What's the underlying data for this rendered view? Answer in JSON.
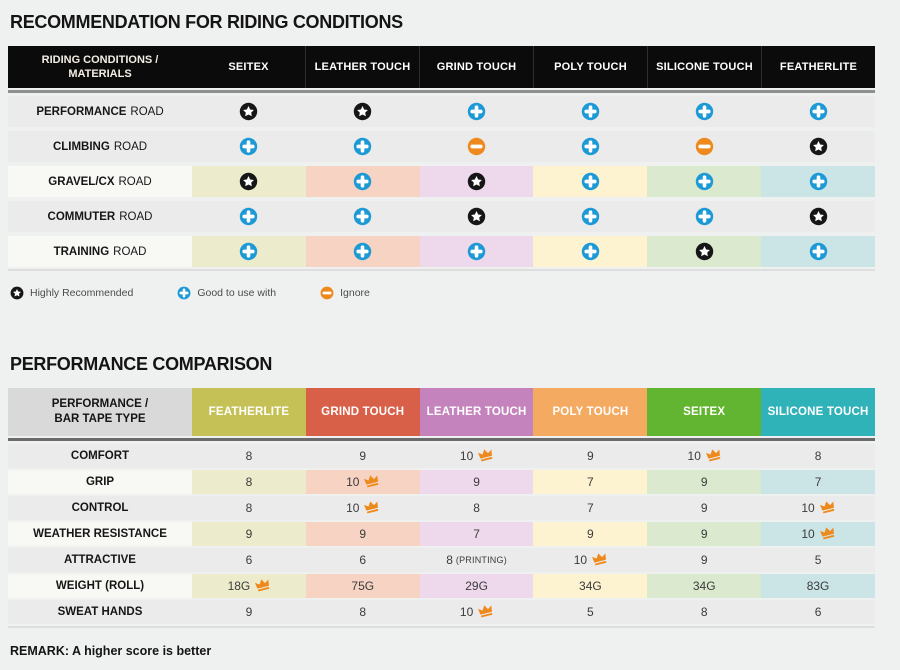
{
  "palette": {
    "page_bg": "#eff0f0",
    "header1_bg": "#0b0b0b",
    "row_gray": "#ebebeb",
    "tint_label_bg": "#f8f8f5",
    "column_tints": [
      "#ececcc",
      "#f6d3c3",
      "#eed8eb",
      "#fdf3d1",
      "#dbe9ce",
      "#cbe5e7"
    ],
    "corner2_bg": "#d9d9d9",
    "icon_blue": "#1d9ad6",
    "icon_orange": "#ee8a1d",
    "icon_black": "#161616",
    "crown_orange": "#ee8a1d"
  },
  "riding": {
    "title": "RECOMMENDATION FOR RIDING CONDITIONS",
    "corner_header": "RIDING CONDITIONS / MATERIALS",
    "columns": [
      "SEITEX",
      "LEATHER TOUCH",
      "GRIND TOUCH",
      "POLY TOUCH",
      "SILICONE TOUCH",
      "FEATHERLITE"
    ],
    "rows": [
      {
        "label_bold": "PERFORMANCE",
        "label_rest": "ROAD",
        "tinted": false,
        "cells": [
          "star",
          "star",
          "plus",
          "plus",
          "plus",
          "plus"
        ]
      },
      {
        "label_bold": "CLIMBING",
        "label_rest": "ROAD",
        "tinted": false,
        "cells": [
          "plus",
          "plus",
          "minus",
          "plus",
          "minus",
          "star"
        ]
      },
      {
        "label_bold": "GRAVEL/CX",
        "label_rest": "ROAD",
        "tinted": true,
        "cells": [
          "star",
          "plus",
          "star",
          "plus",
          "plus",
          "plus"
        ]
      },
      {
        "label_bold": "COMMUTER",
        "label_rest": "ROAD",
        "tinted": false,
        "cells": [
          "plus",
          "plus",
          "star",
          "plus",
          "plus",
          "star"
        ]
      },
      {
        "label_bold": "TRAINING",
        "label_rest": "ROAD",
        "tinted": true,
        "cells": [
          "plus",
          "plus",
          "plus",
          "plus",
          "star",
          "plus"
        ]
      }
    ],
    "legend": [
      {
        "icon": "star",
        "label": "Highly Recommended"
      },
      {
        "icon": "plus",
        "label": "Good to use with"
      },
      {
        "icon": "minus",
        "label": "Ignore"
      }
    ]
  },
  "performance": {
    "title": "PERFORMANCE COMPARISON",
    "corner_header": "PERFORMANCE / BAR TAPE TYPE",
    "columns": [
      {
        "label": "FEATHERLITE",
        "color": "#c6c156"
      },
      {
        "label": "GRIND TOUCH",
        "color": "#d85f48"
      },
      {
        "label": "LEATHER TOUCH",
        "color": "#c583bd"
      },
      {
        "label": "POLY TOUCH",
        "color": "#f4aa61"
      },
      {
        "label": "SEITEX",
        "color": "#62b531"
      },
      {
        "label": "SILICONE TOUCH",
        "color": "#30b2b9"
      }
    ],
    "rows": [
      {
        "label": "COMFORT",
        "tinted": false,
        "cells": [
          {
            "v": "8"
          },
          {
            "v": "9"
          },
          {
            "v": "10",
            "crown": true
          },
          {
            "v": "9"
          },
          {
            "v": "10",
            "crown": true
          },
          {
            "v": "8"
          }
        ]
      },
      {
        "label": "GRIP",
        "tinted": true,
        "cells": [
          {
            "v": "8"
          },
          {
            "v": "10",
            "crown": true
          },
          {
            "v": "9"
          },
          {
            "v": "7"
          },
          {
            "v": "9"
          },
          {
            "v": "7"
          }
        ]
      },
      {
        "label": "CONTROL",
        "tinted": false,
        "cells": [
          {
            "v": "8"
          },
          {
            "v": "10",
            "crown": true
          },
          {
            "v": "8"
          },
          {
            "v": "7"
          },
          {
            "v": "9"
          },
          {
            "v": "10",
            "crown": true
          }
        ]
      },
      {
        "label": "WEATHER RESISTANCE",
        "tinted": true,
        "cells": [
          {
            "v": "9"
          },
          {
            "v": "9"
          },
          {
            "v": "7"
          },
          {
            "v": "9"
          },
          {
            "v": "9"
          },
          {
            "v": "10",
            "crown": true
          }
        ]
      },
      {
        "label": "ATTRACTIVE",
        "tinted": false,
        "cells": [
          {
            "v": "6"
          },
          {
            "v": "6"
          },
          {
            "v": "8",
            "suffix": "(PRINTING)"
          },
          {
            "v": "10",
            "crown": true
          },
          {
            "v": "9"
          },
          {
            "v": "5"
          }
        ]
      },
      {
        "label": "WEIGHT (ROLL)",
        "tinted": true,
        "cells": [
          {
            "v": "18G",
            "crown": true
          },
          {
            "v": "75G"
          },
          {
            "v": "29G"
          },
          {
            "v": "34G"
          },
          {
            "v": "34G"
          },
          {
            "v": "83G"
          }
        ]
      },
      {
        "label": "SWEAT HANDS",
        "tinted": false,
        "cells": [
          {
            "v": "9"
          },
          {
            "v": "8"
          },
          {
            "v": "10",
            "crown": true
          },
          {
            "v": "5"
          },
          {
            "v": "8"
          },
          {
            "v": "6"
          }
        ]
      }
    ],
    "remark": "REMARK: A higher score is better"
  },
  "chart_data": [
    {
      "type": "table",
      "title": "RECOMMENDATION FOR RIDING CONDITIONS",
      "columns": [
        "SEITEX",
        "LEATHER TOUCH",
        "GRIND TOUCH",
        "POLY TOUCH",
        "SILICONE TOUCH",
        "FEATHERLITE"
      ],
      "rows": [
        {
          "label": "PERFORMANCE ROAD",
          "values": [
            "Highly Recommended",
            "Highly Recommended",
            "Good to use with",
            "Good to use with",
            "Good to use with",
            "Good to use with"
          ]
        },
        {
          "label": "CLIMBING ROAD",
          "values": [
            "Good to use with",
            "Good to use with",
            "Ignore",
            "Good to use with",
            "Ignore",
            "Highly Recommended"
          ]
        },
        {
          "label": "GRAVEL/CX ROAD",
          "values": [
            "Highly Recommended",
            "Good to use with",
            "Highly Recommended",
            "Good to use with",
            "Good to use with",
            "Good to use with"
          ]
        },
        {
          "label": "COMMUTER ROAD",
          "values": [
            "Good to use with",
            "Good to use with",
            "Highly Recommended",
            "Good to use with",
            "Good to use with",
            "Highly Recommended"
          ]
        },
        {
          "label": "TRAINING ROAD",
          "values": [
            "Good to use with",
            "Good to use with",
            "Good to use with",
            "Good to use with",
            "Highly Recommended",
            "Good to use with"
          ]
        }
      ],
      "legend": [
        "Highly Recommended",
        "Good to use with",
        "Ignore"
      ]
    },
    {
      "type": "table",
      "title": "PERFORMANCE COMPARISON",
      "columns": [
        "FEATHERLITE",
        "GRIND TOUCH",
        "LEATHER TOUCH",
        "POLY TOUCH",
        "SEITEX",
        "SILICONE TOUCH"
      ],
      "rows": [
        {
          "label": "COMFORT",
          "values": [
            "8",
            "9",
            "10 (best)",
            "9",
            "10 (best)",
            "8"
          ]
        },
        {
          "label": "GRIP",
          "values": [
            "8",
            "10 (best)",
            "9",
            "7",
            "9",
            "7"
          ]
        },
        {
          "label": "CONTROL",
          "values": [
            "8",
            "10 (best)",
            "8",
            "7",
            "9",
            "10 (best)"
          ]
        },
        {
          "label": "WEATHER RESISTANCE",
          "values": [
            "9",
            "9",
            "7",
            "9",
            "9",
            "10 (best)"
          ]
        },
        {
          "label": "ATTRACTIVE",
          "values": [
            "6",
            "6",
            "8 (PRINTING)",
            "10 (best)",
            "9",
            "5"
          ]
        },
        {
          "label": "WEIGHT (ROLL)",
          "values": [
            "18G (best)",
            "75G",
            "29G",
            "34G",
            "34G",
            "83G"
          ]
        },
        {
          "label": "SWEAT HANDS",
          "values": [
            "9",
            "8",
            "10 (best)",
            "5",
            "8",
            "6"
          ]
        }
      ],
      "remark": "REMARK: A higher score is better"
    }
  ]
}
